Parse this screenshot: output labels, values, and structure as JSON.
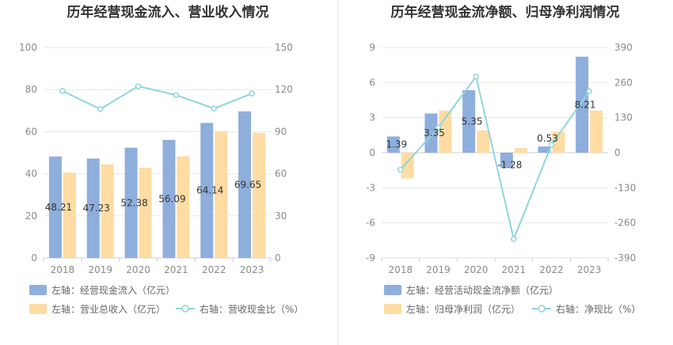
{
  "chart_data": [
    {
      "type": "bar",
      "title": "历年经营现金流入、营业收入情况",
      "categories": [
        "2018",
        "2019",
        "2020",
        "2021",
        "2022",
        "2023"
      ],
      "ylim_left": [
        0,
        100
      ],
      "yticks_left": [
        "0",
        "20",
        "40",
        "60",
        "80",
        "100"
      ],
      "ylim_right": [
        0,
        150
      ],
      "yticks_right": [
        "0",
        "30",
        "60",
        "90",
        "120",
        "150"
      ],
      "series": [
        {
          "name": "左轴：经营现金流入（亿元）",
          "type": "bar",
          "axis": "left",
          "color": "#8eaedc",
          "values": [
            48.21,
            47.23,
            52.38,
            56.09,
            64.14,
            69.65
          ],
          "labels": [
            "48.21",
            "47.23",
            "52.38",
            "56.09",
            "64.14",
            "69.65"
          ]
        },
        {
          "name": "左轴：营业总收入（亿元）",
          "type": "bar",
          "axis": "left",
          "color": "#ffdca3",
          "values": [
            40.5,
            44.5,
            42.8,
            48.3,
            60.2,
            59.4
          ]
        },
        {
          "name": "右轴：营收现金比（%）",
          "type": "line",
          "axis": "right",
          "color": "#8fd5dc",
          "values": [
            119.0,
            106.1,
            122.4,
            116.1,
            106.5,
            117.2
          ]
        }
      ],
      "grid": true,
      "legend": "bottom"
    },
    {
      "type": "bar",
      "title": "历年经营现金流净额、归母净利润情况",
      "categories": [
        "2018",
        "2019",
        "2020",
        "2021",
        "2022",
        "2023"
      ],
      "ylim_left": [
        -9,
        9
      ],
      "yticks_left": [
        "-9",
        "-6",
        "-3",
        "0",
        "3",
        "6",
        "9"
      ],
      "ylim_right": [
        -390,
        390
      ],
      "yticks_right": [
        "-390",
        "-260",
        "-130",
        "0",
        "130",
        "260",
        "390"
      ],
      "series": [
        {
          "name": "左轴：经营活动现金流净额（亿元）",
          "type": "bar",
          "axis": "left",
          "color": "#8eaedc",
          "values": [
            1.39,
            3.35,
            5.35,
            -1.28,
            0.53,
            8.21
          ],
          "labels": [
            "1.39",
            "3.35",
            "5.35",
            "-1.28",
            "0.53",
            "8.21"
          ]
        },
        {
          "name": "左轴：归母净利润（亿元）",
          "type": "bar",
          "axis": "left",
          "color": "#ffdca3",
          "values": [
            -2.2,
            3.6,
            1.9,
            0.4,
            1.8,
            3.6
          ]
        },
        {
          "name": "右轴：净现比（%）",
          "type": "line",
          "axis": "right",
          "color": "#8fd5dc",
          "values": [
            -63,
            93,
            282,
            -320,
            29,
            228
          ]
        }
      ],
      "grid": true,
      "legend": "bottom"
    }
  ]
}
